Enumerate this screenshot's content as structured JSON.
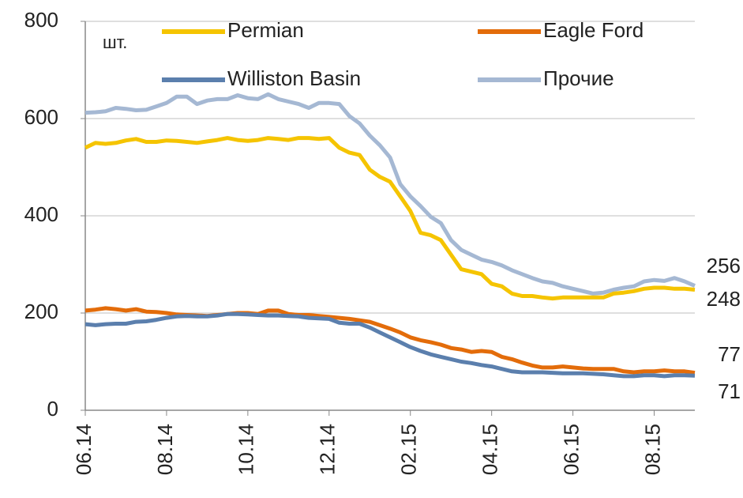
{
  "chart_data": {
    "type": "line",
    "y_label": "шт.",
    "categories": [
      "06.14",
      null,
      null,
      null,
      null,
      null,
      null,
      null,
      "08.14",
      null,
      null,
      null,
      null,
      null,
      null,
      null,
      "10.14",
      null,
      null,
      null,
      null,
      null,
      null,
      null,
      "12.14",
      null,
      null,
      null,
      null,
      null,
      null,
      null,
      "02.15",
      null,
      null,
      null,
      null,
      null,
      null,
      null,
      "04.15",
      null,
      null,
      null,
      null,
      null,
      null,
      null,
      "06.15",
      null,
      null,
      null,
      null,
      null,
      null,
      null,
      "08.15",
      null,
      null,
      null,
      null
    ],
    "series": [
      {
        "name": "Permian",
        "color": "#f5c400",
        "values": [
          540,
          550,
          548,
          550,
          555,
          558,
          552,
          552,
          555,
          554,
          552,
          550,
          553,
          556,
          560,
          556,
          554,
          556,
          560,
          558,
          556,
          560,
          560,
          558,
          560,
          540,
          530,
          525,
          495,
          480,
          470,
          440,
          410,
          365,
          360,
          350,
          320,
          290,
          285,
          280,
          260,
          255,
          240,
          235,
          235,
          232,
          230,
          232,
          232,
          232,
          232,
          232,
          240,
          242,
          245,
          250,
          252,
          252,
          250,
          250,
          248
        ]
      },
      {
        "name": "Eagle Ford",
        "color": "#e36c0a",
        "values": [
          205,
          207,
          210,
          208,
          205,
          208,
          203,
          202,
          200,
          197,
          196,
          195,
          194,
          196,
          198,
          200,
          200,
          198,
          205,
          205,
          198,
          196,
          196,
          194,
          192,
          190,
          188,
          185,
          182,
          175,
          168,
          160,
          150,
          144,
          140,
          135,
          128,
          125,
          120,
          122,
          120,
          110,
          105,
          98,
          92,
          88,
          88,
          90,
          88,
          86,
          85,
          85,
          85,
          80,
          78,
          80,
          80,
          82,
          80,
          80,
          77
        ]
      },
      {
        "name": "Williston Basin",
        "color": "#5b7fad",
        "values": [
          177,
          175,
          177,
          178,
          178,
          182,
          183,
          186,
          190,
          193,
          194,
          193,
          193,
          195,
          198,
          198,
          197,
          196,
          195,
          195,
          194,
          193,
          190,
          189,
          188,
          180,
          178,
          178,
          170,
          160,
          150,
          140,
          130,
          122,
          115,
          110,
          105,
          100,
          97,
          93,
          90,
          85,
          80,
          78,
          78,
          78,
          77,
          76,
          76,
          76,
          75,
          74,
          72,
          70,
          70,
          72,
          72,
          70,
          72,
          72,
          71
        ]
      },
      {
        "name": "Прочие",
        "color": "#a5b8d3",
        "values": [
          612,
          613,
          615,
          622,
          620,
          617,
          618,
          625,
          632,
          645,
          645,
          630,
          637,
          640,
          640,
          648,
          642,
          640,
          650,
          640,
          635,
          630,
          622,
          632,
          632,
          630,
          605,
          590,
          565,
          545,
          520,
          465,
          440,
          420,
          398,
          385,
          350,
          330,
          320,
          310,
          305,
          298,
          288,
          280,
          272,
          265,
          262,
          255,
          250,
          245,
          240,
          242,
          248,
          252,
          255,
          265,
          268,
          266,
          272,
          265,
          256
        ]
      }
    ],
    "ylim": [
      0,
      800
    ],
    "yticks": [
      0,
      200,
      400,
      600,
      800
    ],
    "grid": true
  }
}
